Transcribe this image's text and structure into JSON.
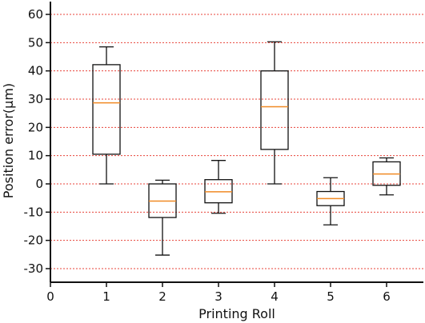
{
  "chart_data": {
    "type": "box",
    "title": "",
    "xlabel": "Printing Roll",
    "ylabel": "Position error(μm)",
    "xlim": [
      0,
      6.7
    ],
    "ylim": [
      -35,
      63
    ],
    "x_ticks": [
      0,
      1,
      2,
      3,
      4,
      5,
      6
    ],
    "y_ticks": [
      -30,
      -20,
      -10,
      0,
      10,
      20,
      30,
      40,
      50,
      60
    ],
    "grid": {
      "y": true,
      "x": false,
      "style": "dotted",
      "color": "#e8433a"
    },
    "box_color": "#111111",
    "median_color": "#f08a24",
    "boxes": [
      {
        "x": 1,
        "whisker_low": 0,
        "q1": 10.5,
        "median": 28.7,
        "q3": 42.2,
        "whisker_high": 48.5
      },
      {
        "x": 2,
        "whisker_low": -25.2,
        "q1": -11.9,
        "median": -6.1,
        "q3": 0.0,
        "whisker_high": 1.3
      },
      {
        "x": 3,
        "whisker_low": -10.4,
        "q1": -6.7,
        "median": -2.8,
        "q3": 1.5,
        "whisker_high": 8.3
      },
      {
        "x": 4,
        "whisker_low": 0,
        "q1": 12.2,
        "median": 27.3,
        "q3": 40.0,
        "whisker_high": 50.3
      },
      {
        "x": 5,
        "whisker_low": -14.5,
        "q1": -7.7,
        "median": -5.2,
        "q3": -2.7,
        "whisker_high": 2.2
      },
      {
        "x": 6,
        "whisker_low": -3.9,
        "q1": -0.5,
        "median": 3.5,
        "q3": 7.8,
        "whisker_high": 9.2
      }
    ]
  }
}
